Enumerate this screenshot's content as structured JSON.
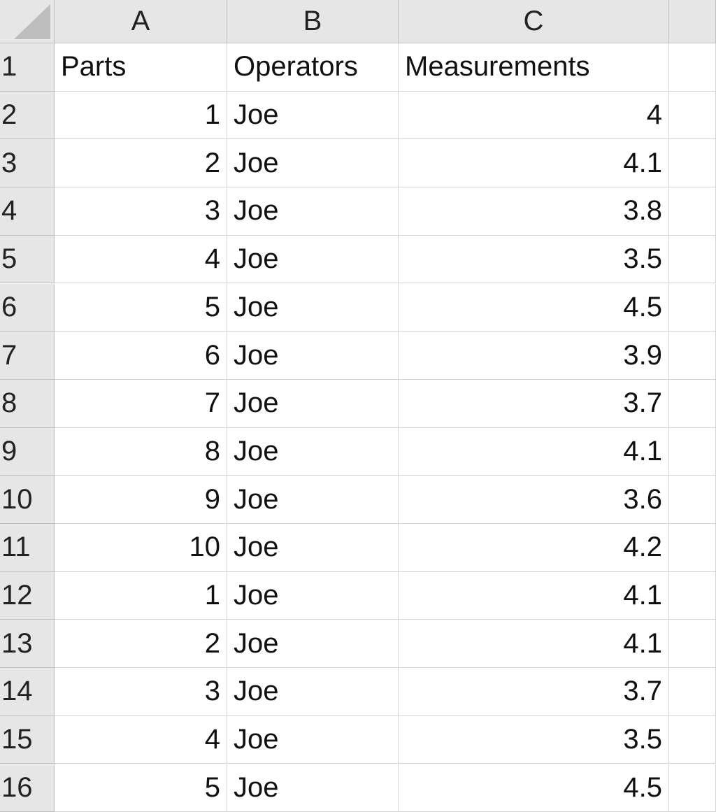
{
  "columns": [
    "A",
    "B",
    "C"
  ],
  "row_numbers": [
    1,
    2,
    3,
    4,
    5,
    6,
    7,
    8,
    9,
    10,
    11,
    12,
    13,
    14,
    15,
    16
  ],
  "table": {
    "header": [
      "Parts",
      "Operators",
      "Measurements"
    ],
    "rows": [
      [
        1,
        "Joe",
        4
      ],
      [
        2,
        "Joe",
        4.1
      ],
      [
        3,
        "Joe",
        3.8
      ],
      [
        4,
        "Joe",
        3.5
      ],
      [
        5,
        "Joe",
        4.5
      ],
      [
        6,
        "Joe",
        3.9
      ],
      [
        7,
        "Joe",
        3.7
      ],
      [
        8,
        "Joe",
        4.1
      ],
      [
        9,
        "Joe",
        3.6
      ],
      [
        10,
        "Joe",
        4.2
      ],
      [
        1,
        "Joe",
        4.1
      ],
      [
        2,
        "Joe",
        4.1
      ],
      [
        3,
        "Joe",
        3.7
      ],
      [
        4,
        "Joe",
        3.5
      ],
      [
        5,
        "Joe",
        4.5
      ]
    ]
  }
}
